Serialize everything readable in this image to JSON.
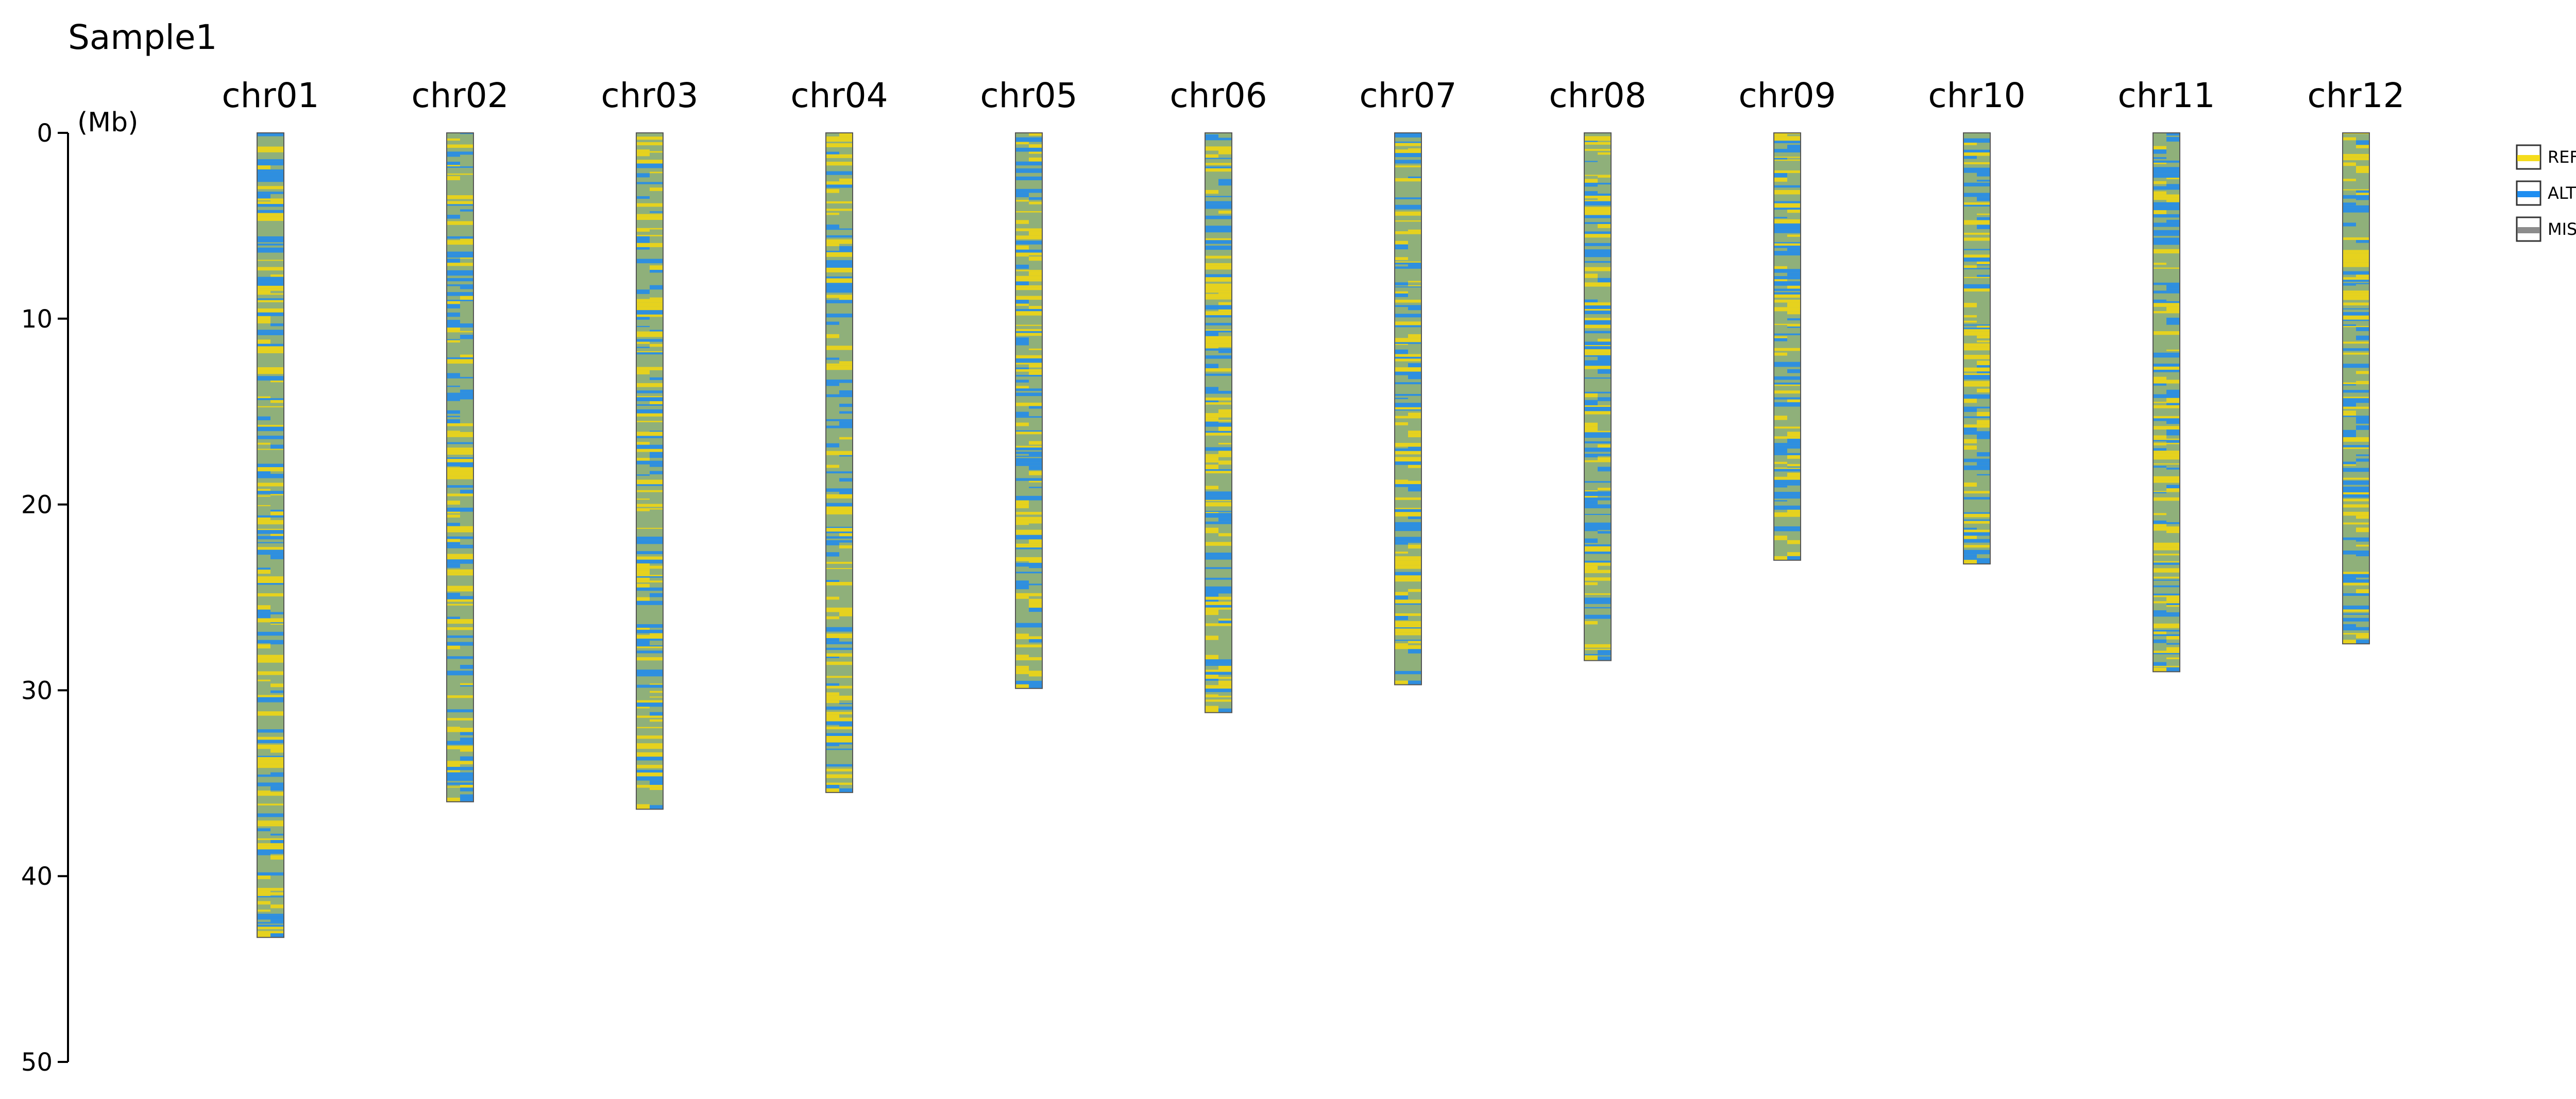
{
  "chart_data": {
    "type": "chromosome-genotype",
    "title": "Sample1",
    "ylabel": "(Mb)",
    "ylim": [
      0,
      50
    ],
    "yticks": [
      0,
      10,
      20,
      30,
      40,
      50
    ],
    "chromosomes": [
      {
        "name": "chr01",
        "length": 43.3
      },
      {
        "name": "chr02",
        "length": 36.0
      },
      {
        "name": "chr03",
        "length": 36.4
      },
      {
        "name": "chr04",
        "length": 35.5
      },
      {
        "name": "chr05",
        "length": 29.9
      },
      {
        "name": "chr06",
        "length": 31.2
      },
      {
        "name": "chr07",
        "length": 29.7
      },
      {
        "name": "chr08",
        "length": 28.4
      },
      {
        "name": "chr09",
        "length": 23.0
      },
      {
        "name": "chr10",
        "length": 23.2
      },
      {
        "name": "chr11",
        "length": 29.0
      },
      {
        "name": "chr12",
        "length": 27.5
      }
    ],
    "legend": {
      "placement": "top-right",
      "items": [
        {
          "label": "REF",
          "color": "#f5dc1c"
        },
        {
          "label": "ALT",
          "color": "#1f8ef1"
        },
        {
          "label": "MISSING",
          "color": "#8c8c8c"
        }
      ]
    },
    "colors": {
      "ref": "#e6d21e",
      "alt": "#2e8fe0",
      "background": "#8fb07a",
      "outline": "#555555"
    }
  }
}
